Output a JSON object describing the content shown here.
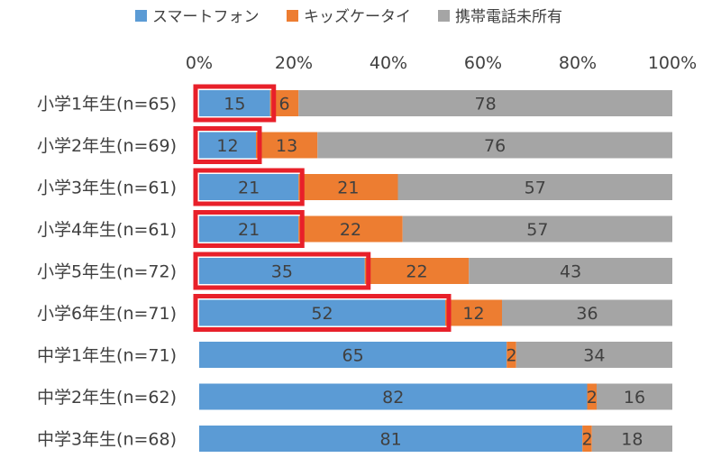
{
  "chart_data": {
    "type": "bar",
    "orientation": "horizontal",
    "stacked": "percent",
    "categories": [
      "小学1年生(n=65)",
      "小学2年生(n=69)",
      "小学3年生(n=61)",
      "小学4年生(n=61)",
      "小学5年生(n=72)",
      "小学6年生(n=71)",
      "中学1年生(n=71)",
      "中学2年生(n=62)",
      "中学3年生(n=68)"
    ],
    "series": [
      {
        "name": "スマートフォン",
        "color": "#5B9BD5",
        "values": [
          15,
          12,
          21,
          21,
          35,
          52,
          65,
          82,
          81
        ]
      },
      {
        "name": "キッズケータイ",
        "color": "#ED7D31",
        "values": [
          6,
          13,
          21,
          22,
          22,
          12,
          2,
          2,
          2
        ]
      },
      {
        "name": "携帯電話未所有",
        "color": "#A5A5A5",
        "values": [
          78,
          76,
          57,
          57,
          43,
          36,
          34,
          16,
          18
        ]
      }
    ],
    "xlim": [
      0,
      100
    ],
    "x_ticks": [
      "0%",
      "20%",
      "40%",
      "60%",
      "80%",
      "100%"
    ],
    "legend_position": "top",
    "highlight": {
      "series_index": 0,
      "category_indices": [
        0,
        1,
        2,
        3,
        4,
        5
      ],
      "color": "#E8202A"
    },
    "grid": false
  }
}
